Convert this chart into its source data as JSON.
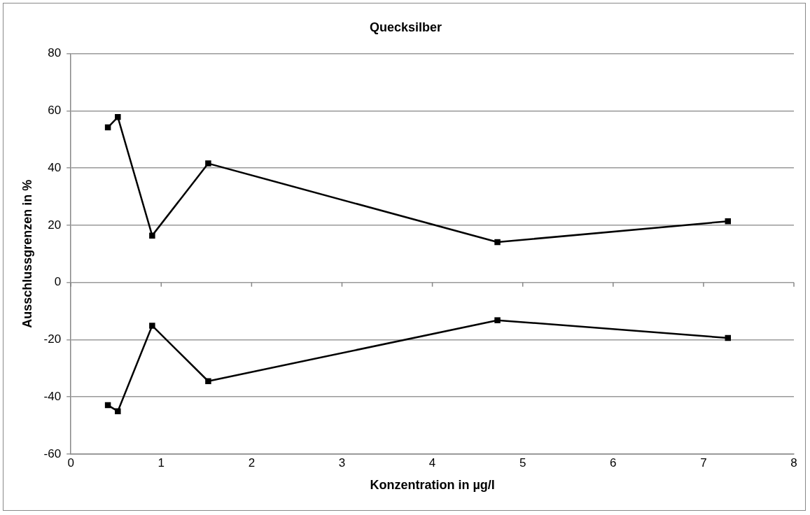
{
  "chart_data": {
    "type": "line",
    "title": "Quecksilber",
    "xlabel": "Konzentration in µg/l",
    "ylabel": "Ausschlussgrenzen in %",
    "x": [
      0.41,
      0.52,
      0.9,
      1.52,
      4.72,
      7.27
    ],
    "series": [
      {
        "color": "#000000",
        "values": [
          54.2,
          57.8,
          16.4,
          41.6,
          14.1,
          21.4
        ]
      },
      {
        "color": "#000000",
        "values": [
          -42.9,
          -45.0,
          -15.1,
          -34.5,
          -13.2,
          -19.4
        ]
      }
    ],
    "xlim": [
      0,
      8
    ],
    "xticks": [
      0,
      1,
      2,
      3,
      4,
      5,
      6,
      7,
      8
    ],
    "ylim": [
      -60,
      80
    ],
    "yticks": [
      -60,
      -40,
      -20,
      0,
      20,
      40,
      60,
      80
    ],
    "grid": "y",
    "legend": false,
    "marker": "square",
    "line_style": "solid"
  }
}
